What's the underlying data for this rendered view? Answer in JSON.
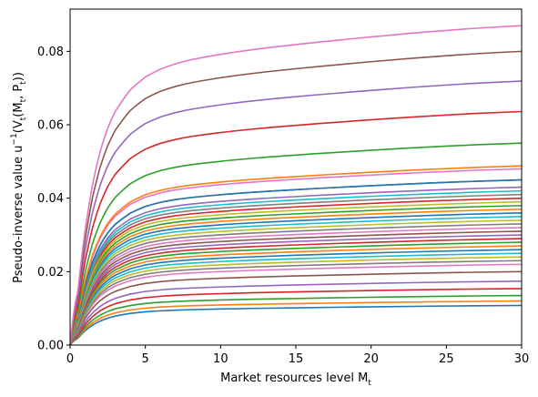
{
  "chart_data": {
    "type": "line",
    "title": "",
    "xlabel": "Market resources level M",
    "xlabel_sub": "t",
    "ylabel": "Pseudo-inverse value u",
    "ylabel_sup": "−1",
    "ylabel_func": "(V",
    "ylabel_func_sub": "t",
    "ylabel_args": "(M",
    "ylabel_args_sub": "t",
    "ylabel_sep": ", P",
    "ylabel_sep_sub": "t",
    "ylabel_close": "))",
    "xlim": [
      0,
      30
    ],
    "ylim": [
      0,
      0.0915
    ],
    "xticks": [
      0,
      5,
      10,
      15,
      20,
      25,
      30
    ],
    "xtick_labels": [
      "0",
      "5",
      "10",
      "15",
      "20",
      "25",
      "30"
    ],
    "yticks": [
      0,
      0.02,
      0.04,
      0.06,
      0.08
    ],
    "ytick_labels": [
      "0.00",
      "0.02",
      "0.04",
      "0.06",
      "0.08"
    ],
    "grid": false,
    "x": [
      0,
      0.5,
      1,
      1.5,
      2,
      2.5,
      3,
      4,
      5,
      6,
      7,
      8,
      10,
      12,
      15,
      18,
      21,
      24,
      27,
      30
    ],
    "series": [
      {
        "color": "#1f77b4",
        "values": [
          0,
          0.00177,
          0.00389,
          0.00545,
          0.00655,
          0.00733,
          0.0079,
          0.00863,
          0.00906,
          0.00933,
          0.00951,
          0.00964,
          0.00983,
          0.00998,
          0.01016,
          0.01032,
          0.01047,
          0.0106,
          0.01071,
          0.0108
        ]
      },
      {
        "color": "#ff7f0e",
        "values": [
          0,
          0.00196,
          0.00432,
          0.00606,
          0.00728,
          0.00814,
          0.00877,
          0.00958,
          0.01007,
          0.01037,
          0.01057,
          0.01071,
          0.01092,
          0.01109,
          0.01129,
          0.01147,
          0.01163,
          0.01178,
          0.0119,
          0.012
        ]
      },
      {
        "color": "#2ca02c",
        "values": [
          0,
          0.00221,
          0.00486,
          0.00681,
          0.00818,
          0.00916,
          0.00987,
          0.01078,
          0.01133,
          0.01166,
          0.01189,
          0.01205,
          0.01229,
          0.01248,
          0.0127,
          0.0129,
          0.01309,
          0.01325,
          0.01339,
          0.0135
        ]
      },
      {
        "color": "#d62728",
        "values": [
          0,
          0.00252,
          0.00554,
          0.00777,
          0.00934,
          0.01045,
          0.01125,
          0.0123,
          0.01292,
          0.0133,
          0.01356,
          0.01374,
          0.01401,
          0.01423,
          0.01449,
          0.01471,
          0.01492,
          0.01511,
          0.01527,
          0.0154
        ]
      },
      {
        "color": "#9467bd",
        "values": [
          0,
          0.00285,
          0.00626,
          0.00878,
          0.01055,
          0.01181,
          0.01272,
          0.0139,
          0.0146,
          0.01503,
          0.01532,
          0.01553,
          0.01584,
          0.01608,
          0.01637,
          0.01663,
          0.01687,
          0.01708,
          0.01726,
          0.0174
        ]
      },
      {
        "color": "#8c564b",
        "values": [
          0,
          0.00328,
          0.0072,
          0.01009,
          0.01213,
          0.01357,
          0.01462,
          0.01597,
          0.01678,
          0.01728,
          0.01761,
          0.01785,
          0.0182,
          0.01848,
          0.01882,
          0.01911,
          0.01938,
          0.01963,
          0.01984,
          0.02
        ]
      },
      {
        "color": "#e377c2",
        "values": [
          0,
          0.00361,
          0.00792,
          0.0111,
          0.01334,
          0.01493,
          0.01608,
          0.01757,
          0.01846,
          0.019,
          0.01937,
          0.01964,
          0.02002,
          0.02033,
          0.0207,
          0.02102,
          0.02132,
          0.02159,
          0.02182,
          0.022
        ]
      },
      {
        "color": "#7f7f7f",
        "values": [
          0,
          0.00377,
          0.00828,
          0.0116,
          0.01395,
          0.01561,
          0.01682,
          0.01837,
          0.0193,
          0.01987,
          0.02025,
          0.02053,
          0.02093,
          0.02125,
          0.02164,
          0.02198,
          0.02229,
          0.02257,
          0.02281,
          0.023
        ]
      },
      {
        "color": "#bcbd22",
        "values": [
          0,
          0.00393,
          0.00864,
          0.01211,
          0.01455,
          0.01629,
          0.01755,
          0.01917,
          0.02014,
          0.02074,
          0.02113,
          0.02142,
          0.02184,
          0.02218,
          0.02258,
          0.02293,
          0.02326,
          0.02355,
          0.0238,
          0.024
        ]
      },
      {
        "color": "#17becf",
        "values": [
          0,
          0.0041,
          0.009,
          0.01261,
          0.01516,
          0.01697,
          0.01828,
          0.01997,
          0.02098,
          0.0216,
          0.02201,
          0.02231,
          0.02275,
          0.0231,
          0.02352,
          0.02389,
          0.02423,
          0.02453,
          0.02479,
          0.025
        ]
      },
      {
        "color": "#1f77b4",
        "values": [
          0,
          0.00426,
          0.00936,
          0.01312,
          0.01577,
          0.01765,
          0.01901,
          0.02077,
          0.02182,
          0.02246,
          0.02289,
          0.02321,
          0.02366,
          0.02402,
          0.02446,
          0.02484,
          0.0252,
          0.02551,
          0.02578,
          0.026
        ]
      },
      {
        "color": "#ff7f0e",
        "values": [
          0,
          0.00443,
          0.00972,
          0.01362,
          0.01637,
          0.01833,
          0.01974,
          0.02157,
          0.02266,
          0.02332,
          0.02377,
          0.0241,
          0.02457,
          0.02494,
          0.0254,
          0.0258,
          0.02617,
          0.0265,
          0.02677,
          0.027
        ]
      },
      {
        "color": "#2ca02c",
        "values": [
          0,
          0.00459,
          0.01008,
          0.01413,
          0.01698,
          0.019,
          0.02047,
          0.02236,
          0.02349,
          0.02419,
          0.02465,
          0.02499,
          0.02548,
          0.02587,
          0.02634,
          0.02675,
          0.02714,
          0.02748,
          0.02777,
          0.028
        ]
      },
      {
        "color": "#d62728",
        "values": [
          0,
          0.00476,
          0.01044,
          0.01463,
          0.01758,
          0.01968,
          0.02121,
          0.02316,
          0.02433,
          0.02505,
          0.02553,
          0.02589,
          0.02639,
          0.02679,
          0.02728,
          0.02771,
          0.0281,
          0.02846,
          0.02876,
          0.029
        ]
      },
      {
        "color": "#9467bd",
        "values": [
          0,
          0.00492,
          0.0108,
          0.01514,
          0.01819,
          0.02036,
          0.02194,
          0.02396,
          0.02517,
          0.02592,
          0.02641,
          0.02678,
          0.0273,
          0.02772,
          0.02822,
          0.02866,
          0.02907,
          0.02944,
          0.02975,
          0.03
        ]
      },
      {
        "color": "#8c564b",
        "values": [
          0,
          0.00508,
          0.01116,
          0.01564,
          0.0188,
          0.02104,
          0.02267,
          0.02476,
          0.02601,
          0.02678,
          0.02729,
          0.02767,
          0.02821,
          0.02864,
          0.02916,
          0.02962,
          0.03004,
          0.03042,
          0.03075,
          0.031
        ]
      },
      {
        "color": "#e377c2",
        "values": [
          0,
          0.00525,
          0.01152,
          0.01615,
          0.0194,
          0.02172,
          0.0234,
          0.02556,
          0.02685,
          0.02764,
          0.02817,
          0.02856,
          0.02912,
          0.02957,
          0.0301,
          0.03057,
          0.03101,
          0.0314,
          0.03174,
          0.032
        ]
      },
      {
        "color": "#7f7f7f",
        "values": [
          0,
          0.00541,
          0.01188,
          0.01665,
          0.02001,
          0.0224,
          0.02413,
          0.02636,
          0.02769,
          0.02851,
          0.02905,
          0.02946,
          0.03003,
          0.03049,
          0.03104,
          0.03153,
          0.03198,
          0.03238,
          0.03273,
          0.033
        ]
      },
      {
        "color": "#bcbd22",
        "values": [
          0,
          0.00558,
          0.01224,
          0.01715,
          0.02062,
          0.02308,
          0.02486,
          0.02716,
          0.02853,
          0.02937,
          0.02993,
          0.03035,
          0.03094,
          0.03142,
          0.03198,
          0.03248,
          0.03295,
          0.03336,
          0.03372,
          0.034
        ]
      },
      {
        "color": "#17becf",
        "values": [
          0,
          0.00574,
          0.0126,
          0.01766,
          0.02122,
          0.02375,
          0.02559,
          0.02795,
          0.02937,
          0.03023,
          0.03081,
          0.03124,
          0.03185,
          0.03234,
          0.03292,
          0.03344,
          0.03391,
          0.03434,
          0.03471,
          0.035
        ]
      },
      {
        "color": "#1f77b4",
        "values": [
          0,
          0.0059,
          0.01296,
          0.01816,
          0.02183,
          0.02443,
          0.02632,
          0.02875,
          0.03021,
          0.0311,
          0.03169,
          0.03213,
          0.03276,
          0.03326,
          0.03386,
          0.03439,
          0.03488,
          0.03532,
          0.0357,
          0.036
        ]
      },
      {
        "color": "#ff7f0e",
        "values": [
          0,
          0.00607,
          0.01332,
          0.01867,
          0.02243,
          0.02511,
          0.02705,
          0.02955,
          0.03105,
          0.03196,
          0.03258,
          0.03303,
          0.03367,
          0.03419,
          0.0348,
          0.03535,
          0.03585,
          0.0363,
          0.0367,
          0.037
        ]
      },
      {
        "color": "#2ca02c",
        "values": [
          0,
          0.00623,
          0.01368,
          0.01917,
          0.02304,
          0.02579,
          0.02778,
          0.03035,
          0.03189,
          0.03283,
          0.03346,
          0.03392,
          0.03458,
          0.03511,
          0.03574,
          0.0363,
          0.03682,
          0.03728,
          0.03769,
          0.038
        ]
      },
      {
        "color": "#d62728",
        "values": [
          0,
          0.00656,
          0.0144,
          0.02018,
          0.02425,
          0.02715,
          0.02925,
          0.03195,
          0.03357,
          0.03455,
          0.03522,
          0.03571,
          0.0364,
          0.03696,
          0.03763,
          0.03821,
          0.03876,
          0.03925,
          0.03967,
          0.04
        ]
      },
      {
        "color": "#9467bd",
        "values": [
          0,
          0.00705,
          0.01548,
          0.02169,
          0.02607,
          0.02918,
          0.03144,
          0.03434,
          0.03608,
          0.03714,
          0.03786,
          0.03838,
          0.03913,
          0.03973,
          0.04045,
          0.04108,
          0.04167,
          0.04219,
          0.04265,
          0.043
        ]
      },
      {
        "color": "#8c564b",
        "values": [
          0,
          0.00738,
          0.0162,
          0.0227,
          0.02728,
          0.03054,
          0.0329,
          0.03594,
          0.03776,
          0.03887,
          0.03962,
          0.04017,
          0.04095,
          0.04158,
          0.04233,
          0.04299,
          0.0436,
          0.04415,
          0.04463,
          0.045
        ]
      },
      {
        "color": "#e377c2",
        "values": [
          0,
          0.00787,
          0.01728,
          0.02422,
          0.0291,
          0.03258,
          0.0351,
          0.03834,
          0.04027,
          0.04146,
          0.04226,
          0.04284,
          0.04368,
          0.04435,
          0.04515,
          0.04586,
          0.04651,
          0.0471,
          0.04761,
          0.048
        ]
      },
      {
        "color": "#17becf",
        "values": [
          0,
          0.00689,
          0.01512,
          0.02119,
          0.02547,
          0.0285,
          0.03071,
          0.03355,
          0.03524,
          0.03628,
          0.03698,
          0.03749,
          0.03822,
          0.03881,
          0.03951,
          0.04013,
          0.0407,
          0.04121,
          0.04166,
          0.042
        ]
      },
      {
        "color": "#bcbd22",
        "values": [
          0,
          0.0064,
          0.01404,
          0.01968,
          0.02365,
          0.02647,
          0.02852,
          0.03115,
          0.03273,
          0.03369,
          0.03434,
          0.03481,
          0.03549,
          0.03604,
          0.03669,
          0.03726,
          0.03779,
          0.03827,
          0.03868,
          0.039
        ]
      },
      {
        "color": "#7f7f7f",
        "values": [
          0,
          0.00672,
          0.01476,
          0.02068,
          0.02486,
          0.02783,
          0.02998,
          0.03275,
          0.03441,
          0.03542,
          0.0361,
          0.0366,
          0.03731,
          0.03789,
          0.03857,
          0.03917,
          0.03973,
          0.04023,
          0.04067,
          0.041
        ]
      },
      {
        "color": "#1f77b4",
        "values": [
          0,
          0.00738,
          0.0162,
          0.0227,
          0.02728,
          0.03054,
          0.0329,
          0.03594,
          0.03776,
          0.03887,
          0.03962,
          0.04017,
          0.04095,
          0.04158,
          0.04233,
          0.04299,
          0.0436,
          0.04415,
          0.04463,
          0.045
        ]
      },
      {
        "color": "#ff7f0e",
        "values": [
          0,
          0.008,
          0.01756,
          0.02462,
          0.02958,
          0.03313,
          0.03568,
          0.03898,
          0.04094,
          0.04215,
          0.04296,
          0.04356,
          0.0444,
          0.04509,
          0.0459,
          0.04662,
          0.04728,
          0.04788,
          0.0484,
          0.0488
        ]
      },
      {
        "color": "#2ca02c",
        "values": [
          0,
          0.00902,
          0.0198,
          0.02775,
          0.03335,
          0.03734,
          0.04022,
          0.04394,
          0.04615,
          0.04752,
          0.04843,
          0.04911,
          0.05005,
          0.05083,
          0.05175,
          0.05255,
          0.0533,
          0.05397,
          0.05456,
          0.055
        ]
      },
      {
        "color": "#d62728",
        "values": [
          0,
          0.01043,
          0.02289,
          0.03209,
          0.03856,
          0.04317,
          0.04651,
          0.0508,
          0.05336,
          0.05494,
          0.056,
          0.05678,
          0.05788,
          0.05877,
          0.05983,
          0.06076,
          0.06163,
          0.06241,
          0.06308,
          0.0636
        ]
      },
      {
        "color": "#9467bd",
        "values": [
          0,
          0.01179,
          0.02588,
          0.03628,
          0.04359,
          0.04881,
          0.05258,
          0.05743,
          0.06033,
          0.06211,
          0.06331,
          0.06419,
          0.06543,
          0.06644,
          0.06764,
          0.06869,
          0.06967,
          0.07055,
          0.07131,
          0.0719
        ]
      },
      {
        "color": "#8c564b",
        "values": [
          0,
          0.01312,
          0.0288,
          0.04037,
          0.0485,
          0.05431,
          0.0585,
          0.0639,
          0.06713,
          0.06911,
          0.07044,
          0.07142,
          0.07281,
          0.07393,
          0.07526,
          0.07643,
          0.07752,
          0.0785,
          0.07935,
          0.08
        ]
      },
      {
        "color": "#e377c2",
        "values": [
          0,
          0.01427,
          0.03132,
          0.0439,
          0.05275,
          0.05906,
          0.06362,
          0.06949,
          0.073,
          0.07515,
          0.0766,
          0.07767,
          0.07917,
          0.08039,
          0.08184,
          0.08312,
          0.0843,
          0.08537,
          0.08629,
          0.087
        ]
      }
    ]
  }
}
